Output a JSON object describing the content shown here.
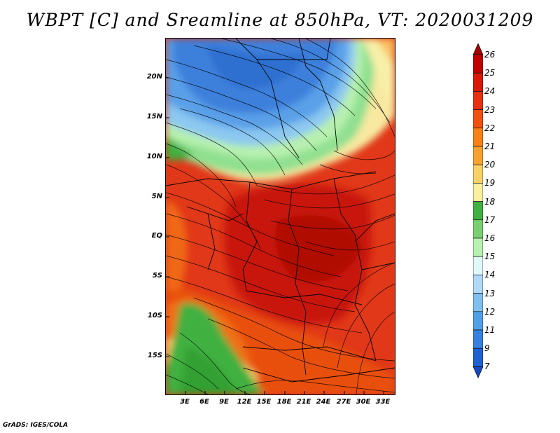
{
  "title": "WBPT [C] and Sreamline at 850hPa, VT: 2020031209",
  "credit": "GrADS: IGES/COLA",
  "lat_labels": [
    "20N",
    "15N",
    "10N",
    "5N",
    "EQ",
    "5S",
    "10S",
    "15S"
  ],
  "lon_labels": [
    "3E",
    "6E",
    "9E",
    "12E",
    "15E",
    "18E",
    "21E",
    "24E",
    "27E",
    "30E",
    "33E"
  ],
  "colorbar": {
    "labels": [
      "26",
      "25",
      "24",
      "23",
      "22",
      "21",
      "20",
      "19",
      "18",
      "17",
      "16",
      "15",
      "14",
      "13",
      "12",
      "11",
      "9",
      "7"
    ],
    "colors": [
      "#a00000",
      "#c00000",
      "#d81808",
      "#e83010",
      "#f05010",
      "#f88018",
      "#f8a030",
      "#f8d068",
      "#f8f0a0",
      "#40b040",
      "#78d070",
      "#b8f0b0",
      "#e0f8f8",
      "#b0d8f8",
      "#80c0f0",
      "#50a0e8",
      "#3880e0",
      "#2060d0",
      "#1848c0"
    ]
  },
  "legend_colors": {
    "cold": "#3c78d8",
    "cool": "#8cc8f0",
    "mild": "#90e090",
    "hot": "#e04018",
    "hottest": "#c81c0c"
  }
}
